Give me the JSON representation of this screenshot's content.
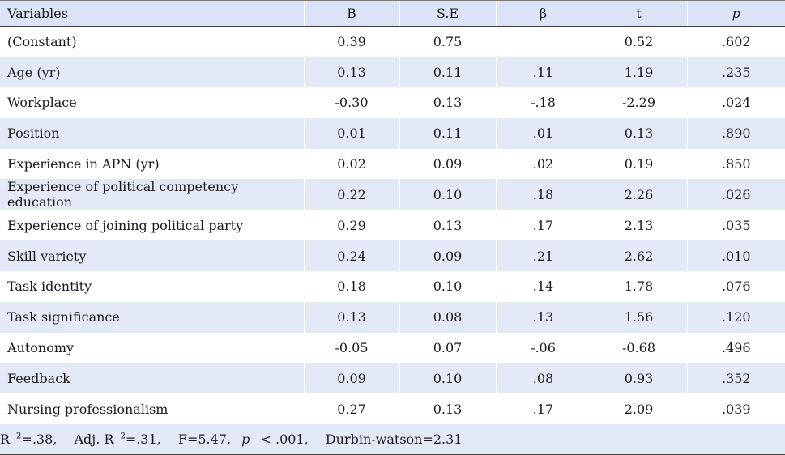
{
  "table": {
    "headers": [
      "Variables",
      "B",
      "S.E",
      "β",
      "t",
      "p"
    ],
    "rows": [
      {
        "variable": "(Constant)",
        "B": "0.39",
        "SE": "0.75",
        "beta": "",
        "t": "0.52",
        "p": ".602"
      },
      {
        "variable": "Age (yr)",
        "B": "0.13",
        "SE": "0.11",
        "beta": ".11",
        "t": "1.19",
        "p": ".235"
      },
      {
        "variable": "Workplace",
        "B": "-0.30",
        "SE": "0.13",
        "beta": "-.18",
        "t": "-2.29",
        "p": ".024"
      },
      {
        "variable": "Position",
        "B": "0.01",
        "SE": "0.11",
        "beta": ".01",
        "t": "0.13",
        "p": ".890"
      },
      {
        "variable": "Experience in APN (yr)",
        "B": "0.02",
        "SE": "0.09",
        "beta": ".02",
        "t": "0.19",
        "p": ".850"
      },
      {
        "variable": "Experience of political competency education",
        "B": "0.22",
        "SE": "0.10",
        "beta": ".18",
        "t": "2.26",
        "p": ".026"
      },
      {
        "variable": "Experience of joining political party",
        "B": "0.29",
        "SE": "0.13",
        "beta": ".17",
        "t": "2.13",
        "p": ".035"
      },
      {
        "variable": "Skill variety",
        "B": "0.24",
        "SE": "0.09",
        "beta": ".21",
        "t": "2.62",
        "p": ".010"
      },
      {
        "variable": "Task identity",
        "B": "0.18",
        "SE": "0.10",
        "beta": ".14",
        "t": "1.78",
        "p": ".076"
      },
      {
        "variable": "Task significance",
        "B": "0.13",
        "SE": "0.08",
        "beta": ".13",
        "t": "1.56",
        "p": ".120"
      },
      {
        "variable": "Autonomy",
        "B": "-0.05",
        "SE": "0.07",
        "beta": "-.06",
        "t": "-0.68",
        "p": ".496"
      },
      {
        "variable": "Feedback",
        "B": "0.09",
        "SE": "0.10",
        "beta": ".08",
        "t": "0.93",
        "p": ".352"
      },
      {
        "variable": "Nursing professionalism",
        "B": "0.27",
        "SE": "0.13",
        "beta": ".17",
        "t": "2.09",
        "p": ".039"
      }
    ],
    "footer": {
      "r2_label": "R",
      "r2_sup": "2",
      "r2_value": "=.38,",
      "adj_label": "Adj. R",
      "adj_sup": "2",
      "adj_value": "=.31,",
      "f_stat": "F=5.47,",
      "p_symbol": "p",
      "p_value": " < .001,",
      "durbin_watson": "Durbin-watson=2.31"
    }
  },
  "colors": {
    "header_bg": "#dde3f6",
    "row_shade": "#e4e9f8",
    "rule": "#444444"
  }
}
